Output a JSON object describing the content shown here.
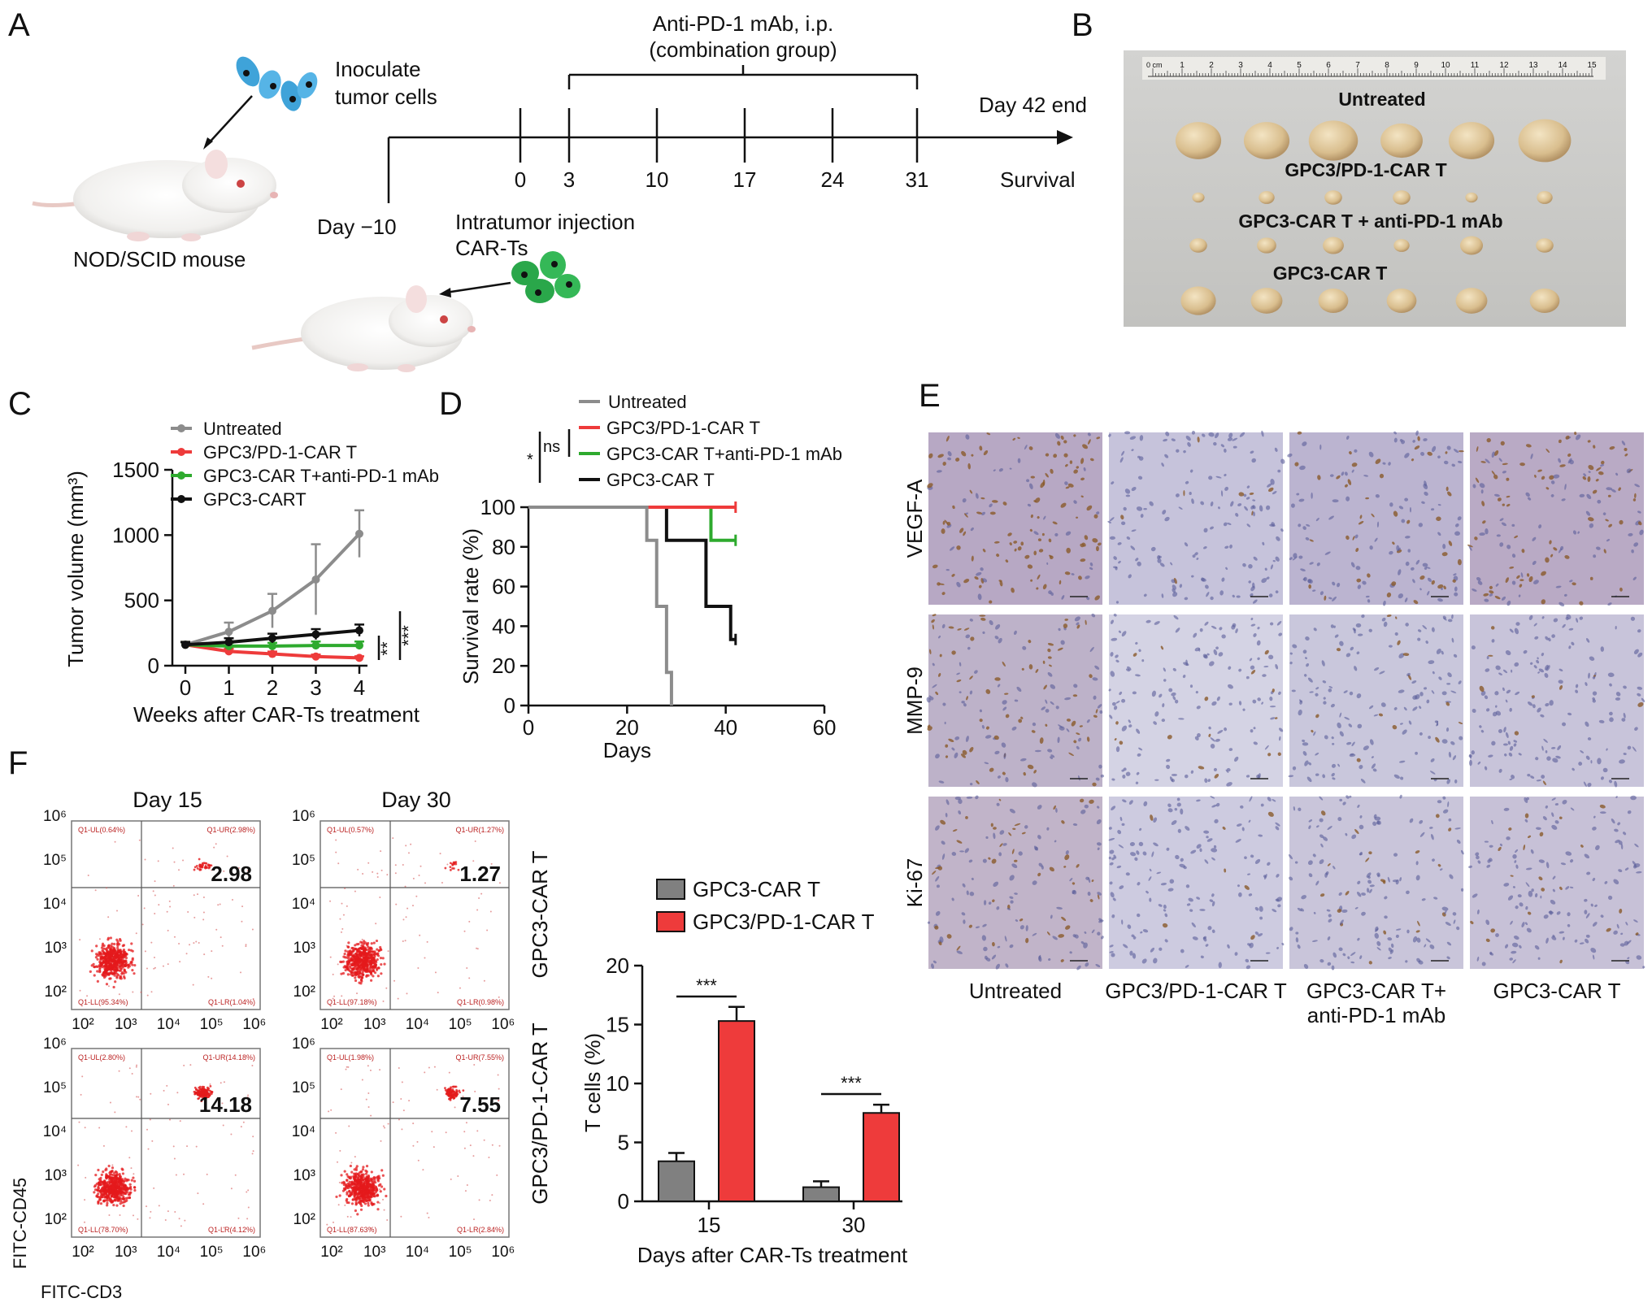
{
  "panels": {
    "a": {
      "letter": "A",
      "inoculate_label": [
        "Inoculate",
        "tumor cells"
      ],
      "mouse_label": "NOD/SCID mouse",
      "day_start_label": "Day −10",
      "days": [
        "0",
        "3",
        "10",
        "17",
        "24",
        "31"
      ],
      "bracket_label": [
        "Anti-PD-1 mAb, i.p.",
        "(combination group)"
      ],
      "end_label": "Day 42 end",
      "survival_label": "Survival",
      "injection_label": [
        "Intratumor injection",
        "CAR-Ts"
      ]
    },
    "b": {
      "letter": "B",
      "ruler_unit": "0 cm",
      "ruler_numbers": [
        "1",
        "2",
        "3",
        "4",
        "5",
        "6",
        "7",
        "8",
        "9",
        "10",
        "11",
        "12",
        "13",
        "14",
        "15"
      ],
      "rows": [
        "Untreated",
        "GPC3/PD-1-CAR T",
        "GPC3-CAR T + anti-PD-1 mAb",
        "GPC3-CAR T"
      ]
    },
    "c": {
      "letter": "C"
    },
    "d": {
      "letter": "D"
    },
    "e": {
      "letter": "E",
      "rows": [
        "VEGF-A",
        "MMP-9",
        "Ki-67"
      ],
      "columns": [
        [
          "Untreated"
        ],
        [
          "GPC3/PD-1-CAR T"
        ],
        [
          "GPC3-CAR T+",
          "anti-PD-1 mAb"
        ],
        [
          "GPC3-CAR T"
        ]
      ]
    },
    "f": {
      "letter": "F",
      "day_headers": [
        "Day 15",
        "Day 30"
      ],
      "row_labels": [
        "GPC3-CAR T",
        "GPC3/PD-1-CAR T"
      ],
      "y_axis": "FITC-CD45",
      "x_axis": "FITC-CD3",
      "tick_labels": [
        "10²",
        "10³",
        "10⁴",
        "10⁵",
        "10⁶"
      ],
      "plots": [
        {
          "ul": "Q1-UL(0.64%)",
          "ur": "Q1-UR(2.98%)",
          "ll": "Q1-LL(95.34%)",
          "lr": "Q1-LR(1.04%)",
          "value": "2.98"
        },
        {
          "ul": "Q1-UL(0.57%)",
          "ur": "Q1-UR(1.27%)",
          "ll": "Q1-LL(97.18%)",
          "lr": "Q1-LR(0.98%)",
          "value": "1.27"
        },
        {
          "ul": "Q1-UL(2.80%)",
          "ur": "Q1-UR(14.18%)",
          "ll": "Q1-LL(78.70%)",
          "lr": "Q1-LR(4.12%)",
          "value": "14.18"
        },
        {
          "ul": "Q1-UL(1.98%)",
          "ur": "Q1-UR(7.55%)",
          "ll": "Q1-LL(87.63%)",
          "lr": "Q1-LR(2.84%)",
          "value": "7.55"
        }
      ]
    }
  },
  "chart_data": [
    {
      "panel": "C",
      "type": "line",
      "title": "",
      "xlabel": "Weeks after CAR-Ts treatment",
      "ylabel": "Tumor volume (mm³)",
      "x": [
        0,
        1,
        2,
        3,
        4
      ],
      "xlim": [
        0,
        4
      ],
      "ylim": [
        0,
        1500
      ],
      "yticks": [
        0,
        500,
        1000,
        1500
      ],
      "legend": "top-left",
      "significance": [
        "**",
        "***"
      ],
      "series": [
        {
          "name": "Untreated",
          "color": "#8c8c8c",
          "values": [
            160,
            260,
            420,
            660,
            1010
          ],
          "errors": [
            25,
            70,
            130,
            270,
            180
          ]
        },
        {
          "name": "GPC3/PD-1-CAR T",
          "color": "#ee3b3b",
          "values": [
            160,
            110,
            90,
            70,
            60
          ],
          "errors": [
            20,
            20,
            18,
            15,
            12
          ]
        },
        {
          "name": "GPC3-CAR T+anti-PD-1 mAb",
          "color": "#2eaa2e",
          "values": [
            160,
            150,
            150,
            155,
            155
          ],
          "errors": [
            20,
            25,
            25,
            30,
            30
          ]
        },
        {
          "name": "GPC3-CART",
          "color": "#111111",
          "values": [
            160,
            180,
            210,
            240,
            270
          ],
          "errors": [
            20,
            30,
            35,
            40,
            45
          ]
        }
      ]
    },
    {
      "panel": "D",
      "type": "line",
      "title": "",
      "xlabel": "Days",
      "ylabel": "Survival rate (%)",
      "xlim": [
        0,
        60
      ],
      "ylim": [
        0,
        100
      ],
      "xticks": [
        0,
        20,
        40,
        60
      ],
      "yticks": [
        0,
        20,
        40,
        60,
        80,
        100
      ],
      "legend": "top",
      "significance": [
        "ns",
        "*"
      ],
      "series": [
        {
          "name": "Untreated",
          "color": "#8c8c8c",
          "steps": [
            [
              0,
              100
            ],
            [
              24,
              100
            ],
            [
              24,
              83.3
            ],
            [
              26,
              83.3
            ],
            [
              26,
              50
            ],
            [
              28,
              50
            ],
            [
              28,
              16.7
            ],
            [
              29,
              16.7
            ],
            [
              29,
              0
            ]
          ]
        },
        {
          "name": "GPC3/PD-1-CAR T",
          "color": "#ee3b3b",
          "steps": [
            [
              0,
              100
            ],
            [
              42,
              100
            ]
          ]
        },
        {
          "name": "GPC3-CAR T+anti-PD-1 mAb",
          "color": "#2eaa2e",
          "steps": [
            [
              0,
              100
            ],
            [
              37,
              100
            ],
            [
              37,
              83.3
            ],
            [
              42,
              83.3
            ]
          ]
        },
        {
          "name": "GPC3-CAR T",
          "color": "#111111",
          "steps": [
            [
              0,
              100
            ],
            [
              28,
              100
            ],
            [
              28,
              83.3
            ],
            [
              36,
              83.3
            ],
            [
              36,
              50
            ],
            [
              41,
              50
            ],
            [
              41,
              33.3
            ],
            [
              42,
              33.3
            ]
          ]
        }
      ]
    },
    {
      "panel": "F",
      "type": "bar",
      "title": "",
      "categories": [
        "15",
        "30"
      ],
      "xlabel": "Days after CAR-Ts treatment",
      "ylabel": "T cells (%)",
      "ylim": [
        0,
        20
      ],
      "yticks": [
        0,
        5,
        10,
        15,
        20
      ],
      "legend": "top",
      "significance": [
        "***",
        "***"
      ],
      "series": [
        {
          "name": "GPC3-CAR T",
          "color": "#808080",
          "values": [
            3.4,
            1.2
          ],
          "errors": [
            0.7,
            0.5
          ]
        },
        {
          "name": "GPC3/PD-1-CAR T",
          "color": "#ee3b3b",
          "values": [
            15.3,
            7.5
          ],
          "errors": [
            1.2,
            0.7
          ]
        }
      ]
    }
  ]
}
